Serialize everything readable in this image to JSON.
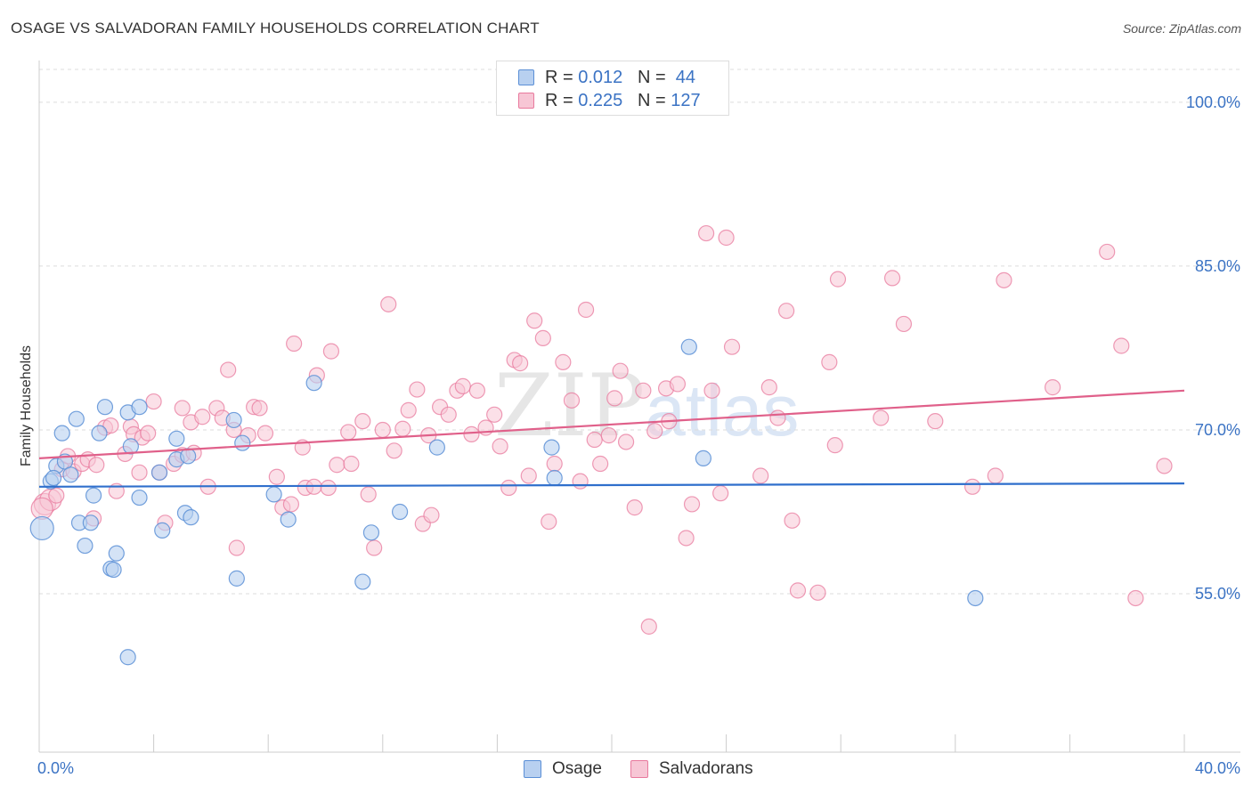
{
  "title": "OSAGE VS SALVADORAN FAMILY HOUSEHOLDS CORRELATION CHART",
  "source": "Source: ZipAtlas.com",
  "watermark": {
    "zip": "ZIP",
    "atlas": "atlas"
  },
  "colors": {
    "osage": "#5b8fd6",
    "osage_fill": "#b8d0f0",
    "salvadoran": "#e8799d",
    "salvadoran_fill": "#f7c6d5",
    "axis_label": "#3b73c4"
  },
  "legend_top": [
    {
      "r_label": "R =",
      "r_value": "0.012",
      "n_label": "N =",
      "n_value": "44"
    },
    {
      "r_label": "R =",
      "r_value": "0.225",
      "n_label": "N =",
      "n_value": "127"
    }
  ],
  "legend_bottom": [
    "Osage",
    "Salvadorans"
  ],
  "chart_data": {
    "type": "scatter",
    "title": "OSAGE VS SALVADORAN FAMILY HOUSEHOLDS CORRELATION CHART",
    "xlabel": "",
    "ylabel": "Family Households",
    "xlim": [
      0,
      40
    ],
    "ylim": [
      40.5,
      103
    ],
    "x_tick_labels": [
      "0.0%",
      "40.0%"
    ],
    "y_ticks": [
      55,
      70,
      85,
      100
    ],
    "y_tick_labels": [
      "55.0%",
      "70.0%",
      "85.0%",
      "100.0%"
    ],
    "grid": true,
    "legend": "top-center",
    "series": [
      {
        "name": "Osage",
        "r": 0.012,
        "n": 44,
        "trend": {
          "x": [
            0,
            40
          ],
          "y": [
            64.8,
            65.1
          ]
        },
        "points": [
          [
            0.1,
            61.0
          ],
          [
            0.4,
            65.3
          ],
          [
            0.6,
            66.7
          ],
          [
            0.5,
            65.6
          ],
          [
            0.8,
            69.7
          ],
          [
            0.9,
            67.1
          ],
          [
            1.1,
            65.9
          ],
          [
            1.3,
            71.0
          ],
          [
            1.4,
            61.5
          ],
          [
            1.6,
            59.4
          ],
          [
            1.9,
            64.0
          ],
          [
            1.8,
            61.5
          ],
          [
            2.1,
            69.7
          ],
          [
            2.3,
            72.1
          ],
          [
            2.5,
            57.3
          ],
          [
            2.6,
            57.2
          ],
          [
            2.7,
            58.7
          ],
          [
            3.1,
            71.6
          ],
          [
            3.2,
            68.5
          ],
          [
            3.5,
            63.8
          ],
          [
            3.5,
            72.1
          ],
          [
            3.1,
            49.2
          ],
          [
            4.2,
            66.1
          ],
          [
            4.3,
            60.8
          ],
          [
            4.8,
            69.2
          ],
          [
            4.8,
            67.3
          ],
          [
            5.1,
            62.4
          ],
          [
            5.2,
            67.6
          ],
          [
            5.3,
            62.0
          ],
          [
            6.8,
            70.9
          ],
          [
            6.9,
            56.4
          ],
          [
            7.1,
            68.8
          ],
          [
            8.2,
            64.1
          ],
          [
            8.7,
            61.8
          ],
          [
            9.6,
            74.3
          ],
          [
            11.6,
            60.6
          ],
          [
            11.3,
            56.1
          ],
          [
            12.6,
            62.5
          ],
          [
            13.9,
            68.4
          ],
          [
            17.9,
            68.4
          ],
          [
            18.0,
            65.6
          ],
          [
            22.7,
            77.6
          ],
          [
            23.2,
            67.4
          ],
          [
            32.7,
            54.6
          ]
        ]
      },
      {
        "name": "Salvadorans",
        "r": 0.225,
        "n": 127,
        "trend": {
          "x": [
            0,
            40
          ],
          "y": [
            67.4,
            73.6
          ]
        },
        "points": [
          [
            0.2,
            63.2
          ],
          [
            0.4,
            63.6
          ],
          [
            0.6,
            64.0
          ],
          [
            0.8,
            66.4
          ],
          [
            1.0,
            67.6
          ],
          [
            1.2,
            66.2
          ],
          [
            1.5,
            66.9
          ],
          [
            1.7,
            67.3
          ],
          [
            1.9,
            61.9
          ],
          [
            2.0,
            66.8
          ],
          [
            2.3,
            70.2
          ],
          [
            2.5,
            70.4
          ],
          [
            2.7,
            64.4
          ],
          [
            3.0,
            67.8
          ],
          [
            3.2,
            70.3
          ],
          [
            3.3,
            69.6
          ],
          [
            3.5,
            66.1
          ],
          [
            3.6,
            69.3
          ],
          [
            3.8,
            69.7
          ],
          [
            4.0,
            72.6
          ],
          [
            4.2,
            66.1
          ],
          [
            4.4,
            61.5
          ],
          [
            4.7,
            66.9
          ],
          [
            5.0,
            67.7
          ],
          [
            5.0,
            72.0
          ],
          [
            5.3,
            70.7
          ],
          [
            5.4,
            67.9
          ],
          [
            5.7,
            71.2
          ],
          [
            5.9,
            64.8
          ],
          [
            6.2,
            72.0
          ],
          [
            6.4,
            71.1
          ],
          [
            6.6,
            75.5
          ],
          [
            6.8,
            70.0
          ],
          [
            6.9,
            59.2
          ],
          [
            7.3,
            69.5
          ],
          [
            7.5,
            72.1
          ],
          [
            7.7,
            72.0
          ],
          [
            7.9,
            69.7
          ],
          [
            8.3,
            65.7
          ],
          [
            8.5,
            62.9
          ],
          [
            8.8,
            63.2
          ],
          [
            8.9,
            77.9
          ],
          [
            9.2,
            68.4
          ],
          [
            9.3,
            64.7
          ],
          [
            9.6,
            64.8
          ],
          [
            9.7,
            75.0
          ],
          [
            10.1,
            64.7
          ],
          [
            10.2,
            77.2
          ],
          [
            10.4,
            66.8
          ],
          [
            10.8,
            69.8
          ],
          [
            10.9,
            66.9
          ],
          [
            11.3,
            70.8
          ],
          [
            11.5,
            64.1
          ],
          [
            11.7,
            59.2
          ],
          [
            12.0,
            70.0
          ],
          [
            12.2,
            81.5
          ],
          [
            12.4,
            68.1
          ],
          [
            12.7,
            70.1
          ],
          [
            12.9,
            71.8
          ],
          [
            13.2,
            73.7
          ],
          [
            13.4,
            61.4
          ],
          [
            13.6,
            69.5
          ],
          [
            13.7,
            62.2
          ],
          [
            14.0,
            72.1
          ],
          [
            14.3,
            71.4
          ],
          [
            14.6,
            73.6
          ],
          [
            14.8,
            74.0
          ],
          [
            15.1,
            69.6
          ],
          [
            15.3,
            73.6
          ],
          [
            15.6,
            70.2
          ],
          [
            15.9,
            71.4
          ],
          [
            16.1,
            68.5
          ],
          [
            16.4,
            64.7
          ],
          [
            16.6,
            76.4
          ],
          [
            16.8,
            76.1
          ],
          [
            17.1,
            65.8
          ],
          [
            17.3,
            80.0
          ],
          [
            17.6,
            78.4
          ],
          [
            17.8,
            61.6
          ],
          [
            18.0,
            66.9
          ],
          [
            18.3,
            76.2
          ],
          [
            18.6,
            72.7
          ],
          [
            18.9,
            65.3
          ],
          [
            19.1,
            81.0
          ],
          [
            19.4,
            69.1
          ],
          [
            19.6,
            66.9
          ],
          [
            19.9,
            69.5
          ],
          [
            20.1,
            72.9
          ],
          [
            20.3,
            75.4
          ],
          [
            20.5,
            68.9
          ],
          [
            20.8,
            62.9
          ],
          [
            21.1,
            73.6
          ],
          [
            21.3,
            52.0
          ],
          [
            21.5,
            69.9
          ],
          [
            21.9,
            73.8
          ],
          [
            22.0,
            70.8
          ],
          [
            22.3,
            74.2
          ],
          [
            22.6,
            60.1
          ],
          [
            22.8,
            63.2
          ],
          [
            23.3,
            88.0
          ],
          [
            23.5,
            73.6
          ],
          [
            23.8,
            64.2
          ],
          [
            24.0,
            87.6
          ],
          [
            24.2,
            77.6
          ],
          [
            25.2,
            65.8
          ],
          [
            25.5,
            73.9
          ],
          [
            25.8,
            71.1
          ],
          [
            26.1,
            80.9
          ],
          [
            26.3,
            61.7
          ],
          [
            26.5,
            55.3
          ],
          [
            27.2,
            55.1
          ],
          [
            27.6,
            76.2
          ],
          [
            27.8,
            68.6
          ],
          [
            27.9,
            83.8
          ],
          [
            29.4,
            71.1
          ],
          [
            29.8,
            83.9
          ],
          [
            30.2,
            79.7
          ],
          [
            31.3,
            70.8
          ],
          [
            32.6,
            64.8
          ],
          [
            33.4,
            65.8
          ],
          [
            33.7,
            83.7
          ],
          [
            35.4,
            73.9
          ],
          [
            37.3,
            86.3
          ],
          [
            37.8,
            77.7
          ],
          [
            38.3,
            54.6
          ],
          [
            39.3,
            66.7
          ],
          [
            0.1,
            62.8
          ]
        ]
      }
    ]
  }
}
